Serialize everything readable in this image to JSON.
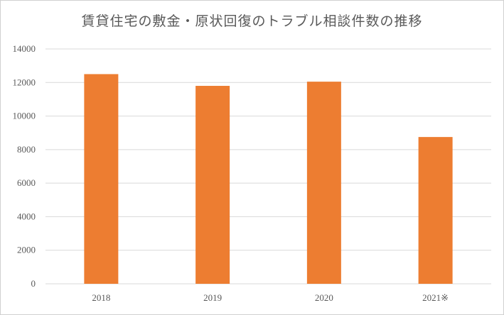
{
  "chart_data": {
    "type": "bar",
    "title": "賃貸住宅の敷金・原状回復のトラブル相談件数の推移",
    "categories": [
      "2018",
      "2019",
      "2020",
      "2021※"
    ],
    "values": [
      12500,
      11800,
      12050,
      8750
    ],
    "ylim": [
      0,
      14000
    ],
    "yticks": [
      0,
      2000,
      4000,
      6000,
      8000,
      10000,
      12000,
      14000
    ],
    "xlabel": "",
    "ylabel": "",
    "grid": true,
    "bar_color": "#ED7D31",
    "grid_color": "#D9D9D9",
    "text_color": "#595959"
  }
}
